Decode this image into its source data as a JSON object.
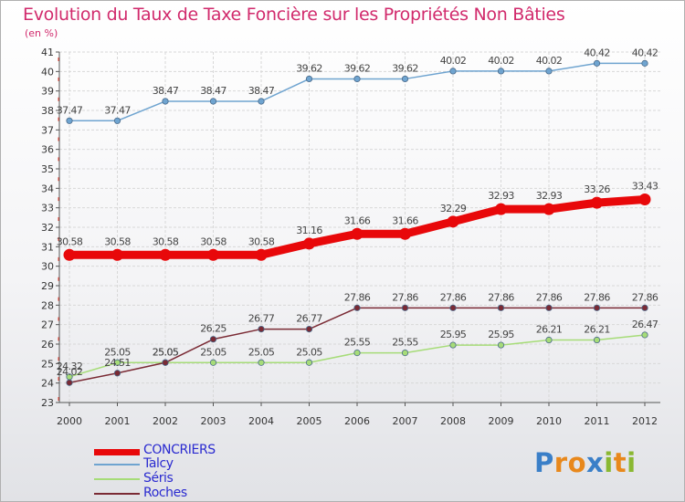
{
  "title": "Evolution du Taux de Taxe Foncière sur les Propriétés Non Bâties",
  "subtitle": "(en %)",
  "logo": {
    "letters": [
      "P",
      "r",
      "o",
      "x",
      "i",
      "t",
      "i"
    ],
    "colors": [
      "#3a7fc8",
      "#e8881c",
      "#e8881c",
      "#3a7fc8",
      "#8ab832",
      "#e8881c",
      "#8ab832"
    ]
  },
  "chart_data": {
    "type": "line",
    "x": [
      2000,
      2001,
      2002,
      2003,
      2004,
      2005,
      2006,
      2007,
      2008,
      2009,
      2010,
      2011,
      2012
    ],
    "ylim": [
      23,
      41
    ],
    "yticks": [
      23,
      24,
      25,
      26,
      27,
      28,
      29,
      30,
      31,
      32,
      33,
      34,
      35,
      36,
      37,
      38,
      39,
      40,
      41
    ],
    "grid": true,
    "legend_position": "bottom-left",
    "series": [
      {
        "name": "Talcy",
        "color": "#6fa4d0",
        "values": [
          37.47,
          37.47,
          38.47,
          38.47,
          38.47,
          39.62,
          39.62,
          39.62,
          40.02,
          40.02,
          40.02,
          40.42,
          40.42
        ]
      },
      {
        "name": "Séris",
        "color": "#a6dc78",
        "values": [
          24.32,
          25.05,
          25.05,
          25.05,
          25.05,
          25.05,
          25.55,
          25.55,
          25.95,
          25.95,
          26.21,
          26.21,
          26.47
        ]
      },
      {
        "name": "Roches",
        "color": "#7a2a34",
        "values": [
          24.02,
          24.51,
          25.05,
          26.25,
          26.77,
          26.77,
          27.86,
          27.86,
          27.86,
          27.86,
          27.86,
          27.86,
          27.86
        ]
      },
      {
        "name": "CONCRIERS",
        "color": "#e8080a",
        "values": [
          30.58,
          30.58,
          30.58,
          30.58,
          30.58,
          31.16,
          31.66,
          31.66,
          32.29,
          32.93,
          32.93,
          33.26,
          33.43
        ]
      }
    ],
    "legend_order": [
      "CONCRIERS",
      "Talcy",
      "Séris",
      "Roches"
    ]
  }
}
